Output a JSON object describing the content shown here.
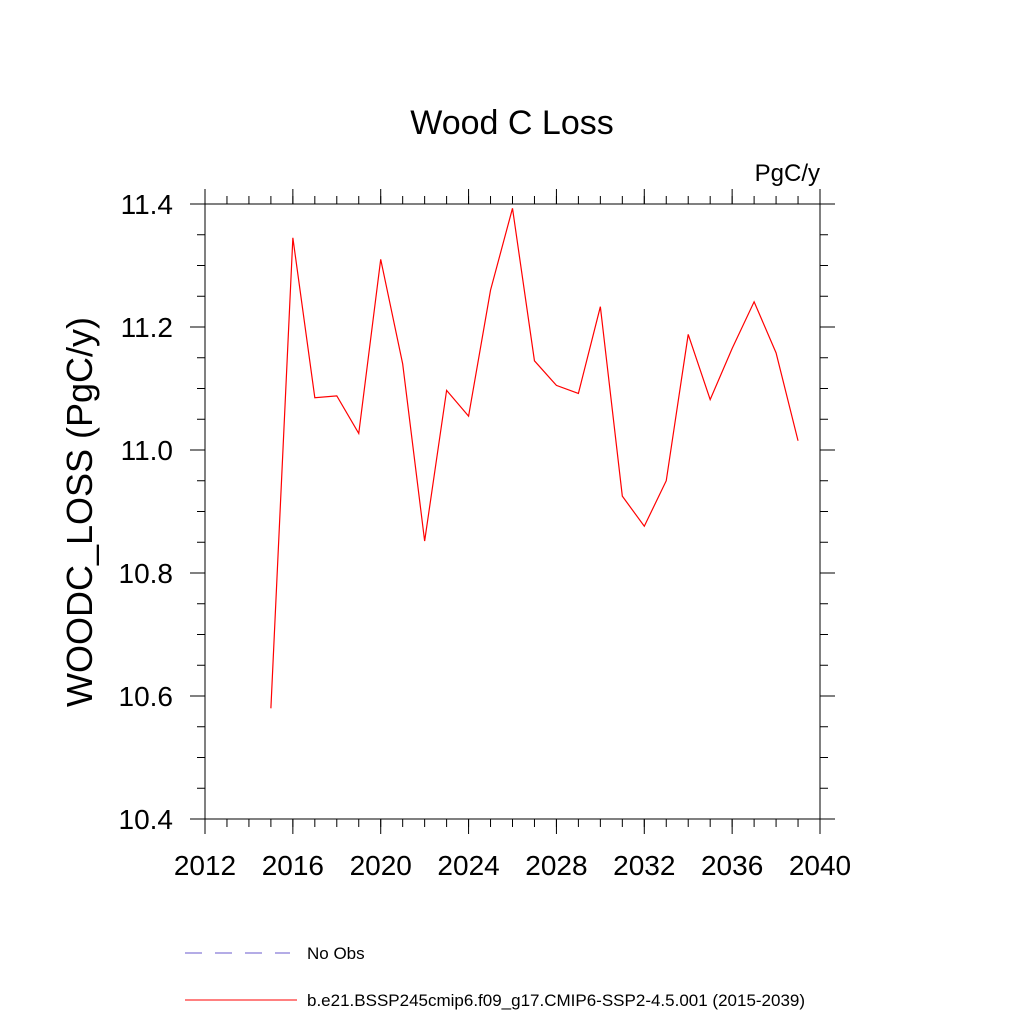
{
  "chart_data": {
    "type": "line",
    "title": "Wood C Loss",
    "units_label": "PgC/y",
    "xlabel": "",
    "ylabel": "WOODC_LOSS  (PgC/y)",
    "xlim": [
      2012,
      2040
    ],
    "ylim": [
      10.4,
      11.4
    ],
    "x_major_ticks": [
      2012,
      2016,
      2020,
      2024,
      2028,
      2032,
      2036,
      2040
    ],
    "x_minor_step": 1,
    "y_major_ticks": [
      10.4,
      10.6,
      10.8,
      11.0,
      11.2,
      11.4
    ],
    "y_tick_labels": [
      "10.4",
      "10.6",
      "10.8",
      "11.0",
      "11.2",
      "11.4"
    ],
    "y_minor_step": 0.05,
    "grid": false,
    "series": [
      {
        "name": "b.e21.BSSP245cmip6.f09_g17.CMIP6-SSP2-4.5.001 (2015-2039)",
        "color": "#ff0000",
        "dash": "solid",
        "x": [
          2015,
          2016,
          2017,
          2018,
          2019,
          2020,
          2021,
          2022,
          2023,
          2024,
          2025,
          2026,
          2027,
          2028,
          2029,
          2030,
          2031,
          2032,
          2033,
          2034,
          2035,
          2036,
          2037,
          2038,
          2039
        ],
        "values": [
          10.58,
          11.345,
          11.085,
          11.088,
          11.027,
          11.31,
          11.14,
          10.852,
          11.097,
          11.055,
          11.26,
          11.393,
          11.145,
          11.105,
          11.092,
          11.233,
          10.925,
          10.876,
          10.95,
          11.188,
          11.082,
          11.165,
          11.241,
          11.158,
          11.015
        ]
      }
    ],
    "legend": {
      "placement": "bottom-left",
      "entries": [
        {
          "label": "No Obs",
          "color": "#6a5acd",
          "dash": "dashed"
        },
        {
          "label": "b.e21.BSSP245cmip6.f09_g17.CMIP6-SSP2-4.5.001 (2015-2039)",
          "color": "#ff0000",
          "dash": "solid"
        }
      ]
    }
  }
}
